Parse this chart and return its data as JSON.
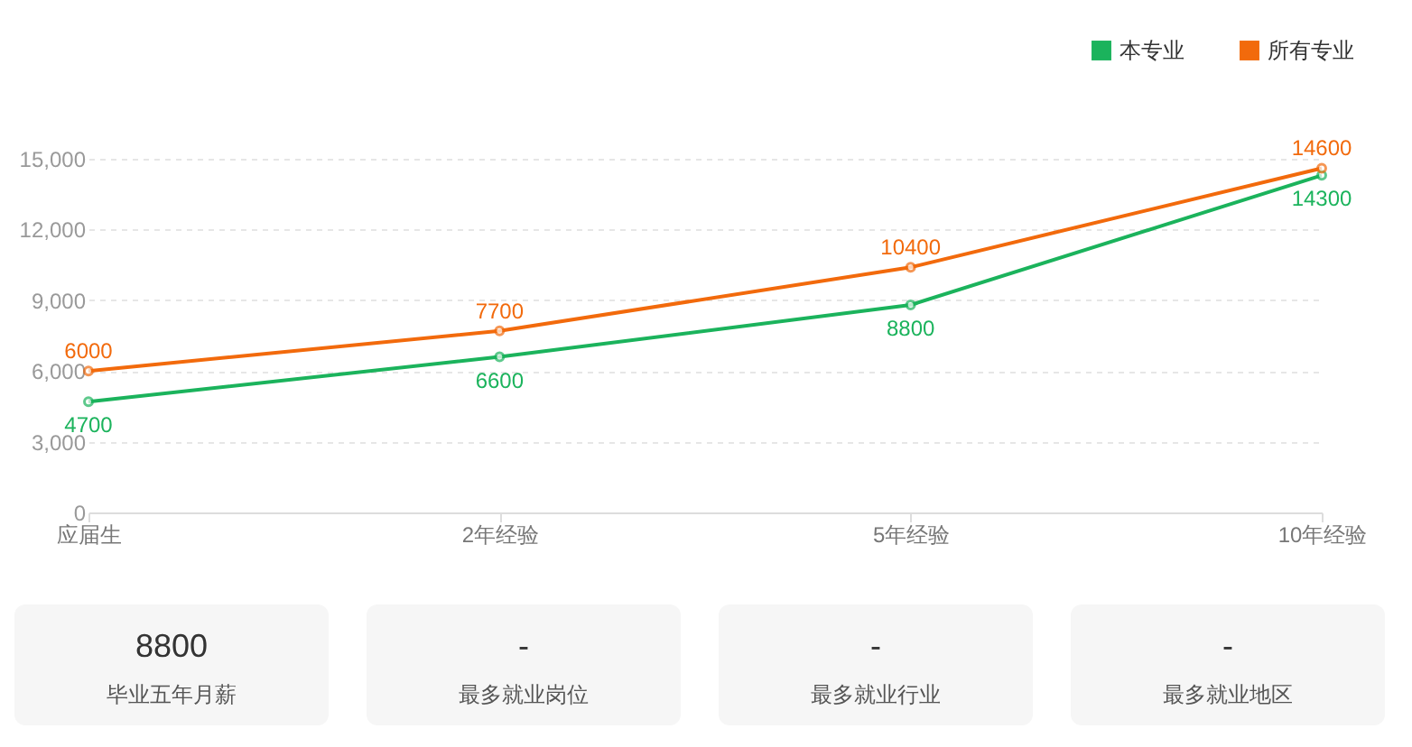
{
  "chart_data": [
    {
      "type": "line",
      "categories": [
        "应届生",
        "2年经验",
        "5年经验",
        "10年经验"
      ],
      "series": [
        {
          "name": "本专业",
          "color": "#1bb35c",
          "values": [
            4700,
            6600,
            8800,
            14300
          ]
        },
        {
          "name": "所有专业",
          "color": "#f26a0c",
          "values": [
            6000,
            7700,
            10400,
            14600
          ]
        }
      ],
      "ylim": [
        0,
        15000
      ],
      "yticks": [
        {
          "value": 0,
          "label": "0"
        },
        {
          "value": 3000,
          "label": "3,000"
        },
        {
          "value": 6000,
          "label": "6,000"
        },
        {
          "value": 9000,
          "label": "9,000"
        },
        {
          "value": 12000,
          "label": "12,000"
        },
        {
          "value": 15000,
          "label": "15,000"
        }
      ],
      "grid": "y",
      "legend": "top right",
      "marker": "circle",
      "line_style": "solid",
      "data_labels": true
    },
    {
      "type": "other",
      "annotations": [
        "8800",
        "毕业五年月薪"
      ]
    },
    {
      "type": "other",
      "annotations": [
        "-",
        "最多就业岗位"
      ]
    },
    {
      "type": "other",
      "annotations": [
        "-",
        "最多就业行业"
      ]
    },
    {
      "type": "other",
      "annotations": [
        "-",
        "最多就业地区"
      ]
    }
  ]
}
